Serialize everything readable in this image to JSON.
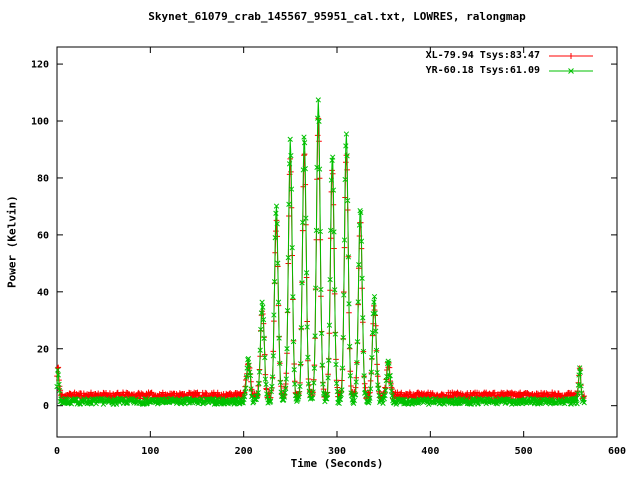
{
  "chart_data": {
    "type": "scatter",
    "title": "Skynet_61079_crab_145567_95951_cal.txt, LOWRES, ralongmap",
    "xlabel": "Time (Seconds)",
    "ylabel": "Power (Kelvin)",
    "xlim": [
      0,
      600
    ],
    "ylim": [
      -11,
      126
    ],
    "xticks": [
      0,
      100,
      200,
      300,
      400,
      500,
      600
    ],
    "yticks": [
      0,
      20,
      40,
      60,
      80,
      100,
      120
    ],
    "grid": false,
    "legend_position": "top-right-inside",
    "t_start": 0,
    "t_end": 565,
    "t_step": 0.7,
    "peak_sigma": 2.0,
    "cal_sigma": 1.2,
    "series": [
      {
        "name": "XL-79.94 Tsys:83.47",
        "key": "xl",
        "color": "#ff0000",
        "marker": "plus",
        "baseline": 3.6,
        "noise": 1.1,
        "seed": 11
      },
      {
        "name": "YR-60.18 Tsys:61.09",
        "key": "yr",
        "color": "#00c000",
        "marker": "cross",
        "baseline": 1.5,
        "noise": 1.0,
        "seed": 7
      }
    ],
    "peaks": [
      {
        "t": 205,
        "xl": 11.4,
        "yr": 14.5
      },
      {
        "t": 220,
        "xl": 30.4,
        "yr": 34.5
      },
      {
        "t": 235,
        "xl": 61.4,
        "yr": 68.5
      },
      {
        "t": 250,
        "xl": 83.4,
        "yr": 91.5
      },
      {
        "t": 265,
        "xl": 85.4,
        "yr": 93.5
      },
      {
        "t": 280,
        "xl": 96.4,
        "yr": 105.5
      },
      {
        "t": 295,
        "xl": 79.4,
        "yr": 86.5
      },
      {
        "t": 310,
        "xl": 86.4,
        "yr": 94.5
      },
      {
        "t": 325,
        "xl": 61.4,
        "yr": 67.5
      },
      {
        "t": 340,
        "xl": 31.4,
        "yr": 35.5
      },
      {
        "t": 355,
        "xl": 10.4,
        "yr": 13.5
      }
    ],
    "cal_spikes": [
      {
        "t": 1,
        "xl": 9.5,
        "yr": 10.0
      },
      {
        "t": 560,
        "xl": 9.0,
        "yr": 11.0
      }
    ]
  }
}
